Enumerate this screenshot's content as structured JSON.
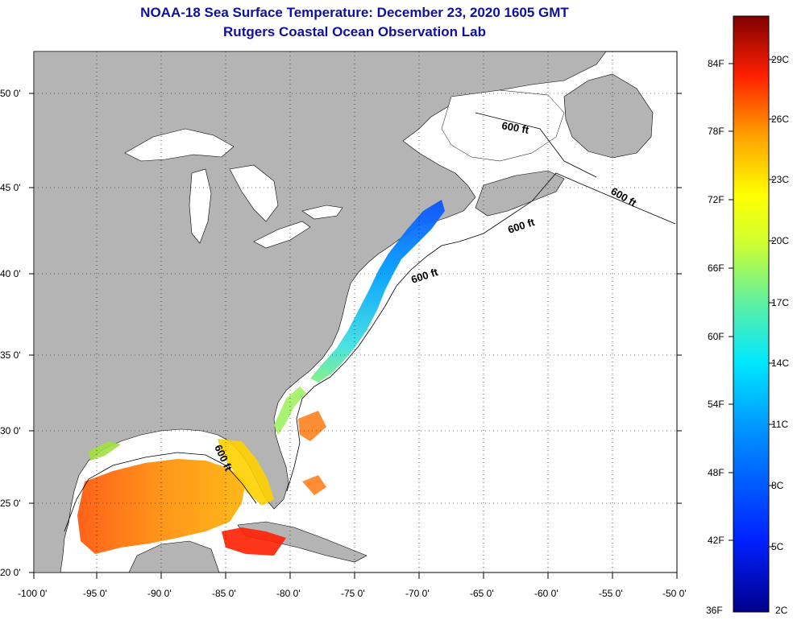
{
  "title": {
    "line1": "NOAA-18 Sea Surface Temperature:  December 23, 2020 1605 GMT",
    "line2": "Rutgers Coastal Ocean Observation Lab"
  },
  "map": {
    "lat_labels": [
      "50 0'",
      "45 0'",
      "40 0'",
      "35 0'",
      "30 0'",
      "25 0'",
      "20 0'"
    ],
    "lon_labels": [
      "-100 0'",
      "-95 0'",
      "-90 0'",
      "-85 0'",
      "-80 0'",
      "-75 0'",
      "-70 0'",
      "-65 0'",
      "-60 0'",
      "-55 0'",
      "-50 0'"
    ],
    "isobath_labels": [
      "600 ft",
      "600 ft",
      "600 ft",
      "600 ft",
      "600 ft"
    ],
    "land_color": "#b4b4b4",
    "ocean_color": "#ffffff"
  },
  "colorbar": {
    "fahrenheit_labels": [
      "84F",
      "78F",
      "72F",
      "66F",
      "60F",
      "54F",
      "48F",
      "42F",
      "36F"
    ],
    "celsius_labels": [
      "29C",
      "26C",
      "23C",
      "20C",
      "17C",
      "14C",
      "11C",
      "8C",
      "5C",
      "2C"
    ]
  }
}
